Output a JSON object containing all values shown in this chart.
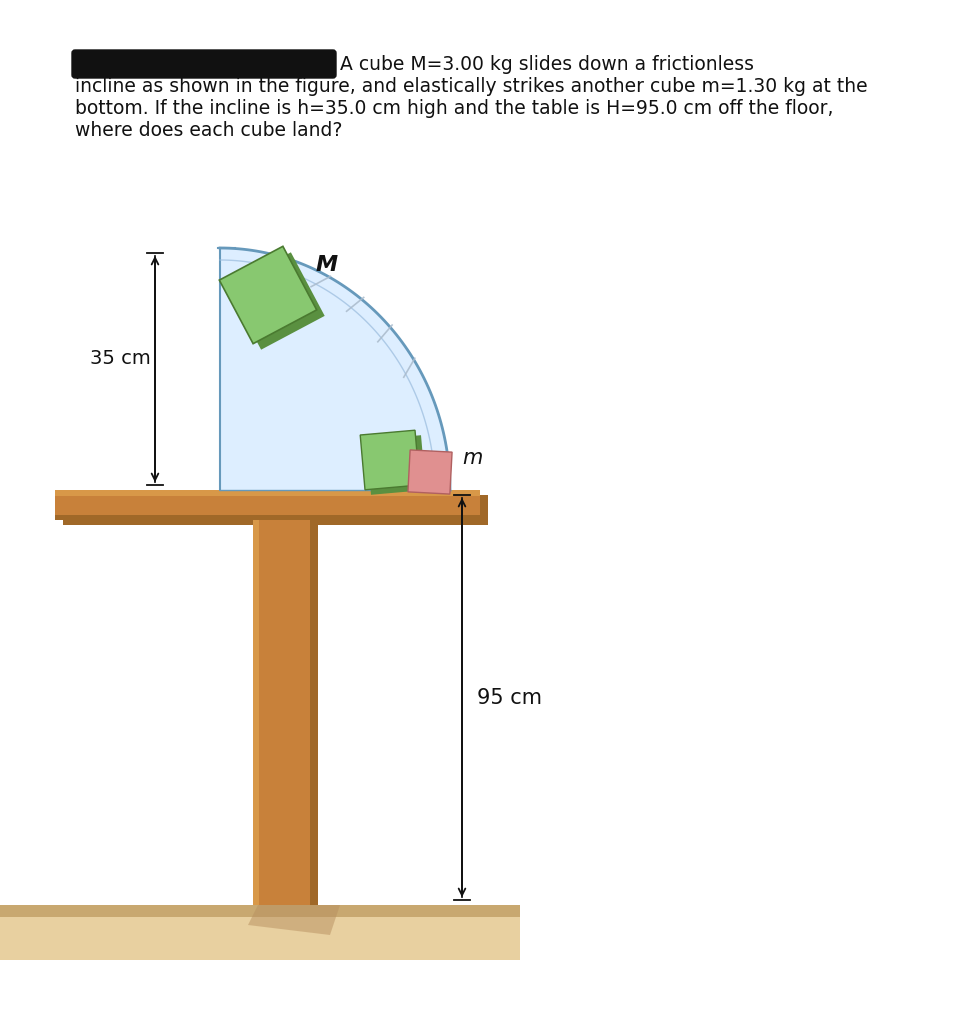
{
  "title_line1": "A cube M=3.00 kg slides down a frictionless",
  "title_line2": "incline as shown in the figure, and elastically strikes another cube m=1.30 kg at the",
  "title_line3": "bottom. If the incline is h=35.0 cm high and the table is H=95.0 cm off the floor,",
  "title_line4": "where does each cube land?",
  "label_M": "M",
  "label_m": "m",
  "label_35cm": "35 cm",
  "label_95cm": "95 cm",
  "bg_color": "#ffffff",
  "table_color": "#c8813a",
  "table_dark": "#a06828",
  "table_light": "#d89848",
  "floor_color_light": "#e8d0a0",
  "floor_color_dark": "#c8a870",
  "incline_fill": "#ddeeff",
  "incline_edge": "#6699bb",
  "incline_edge2": "#99bbdd",
  "cube_M_face": "#88c870",
  "cube_M_edge": "#4a7a30",
  "cube_M_dark": "#5a9040",
  "cube_m_green": "#88c870",
  "cube_m_pink": "#e09090",
  "cube_m_pink_dark": "#b06060",
  "arrow_color": "#111111",
  "text_color": "#111111",
  "redact_color": "#111111",
  "motion_line_color": "#aabbcc",
  "font_size_text": 13.5,
  "font_size_label": 13,
  "font_size_dim": 13
}
